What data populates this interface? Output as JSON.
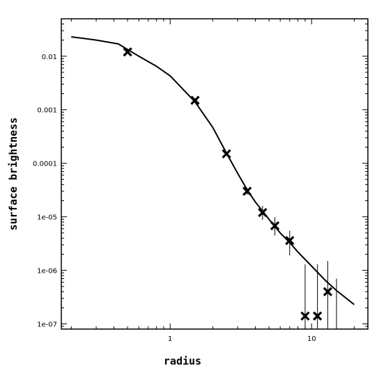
{
  "chart_data": {
    "type": "scatter",
    "xlabel": "radius",
    "ylabel": "surface brightness",
    "xscale": "log",
    "yscale": "log",
    "xlim": [
      0.17,
      25
    ],
    "ylim": [
      8e-08,
      0.05
    ],
    "grid": false,
    "x_ticks": [
      {
        "value": 1,
        "label": "1"
      },
      {
        "value": 10,
        "label": "10"
      }
    ],
    "y_ticks": [
      {
        "value": 0.01,
        "label": "0.01"
      },
      {
        "value": 0.001,
        "label": "0.001"
      },
      {
        "value": 0.0001,
        "label": "0.0001"
      },
      {
        "value": 1e-05,
        "label": "1e-05"
      },
      {
        "value": 1e-06,
        "label": "1e-06"
      },
      {
        "value": 1e-07,
        "label": "1e-07"
      }
    ],
    "series": [
      {
        "kind": "line",
        "x": [
          0.2,
          0.3,
          0.43,
          0.6,
          0.8,
          1.0,
          1.5,
          2.0,
          2.5,
          3.0,
          3.5,
          4.0,
          5.0,
          6.0,
          7.0,
          8.0,
          10.0,
          12.5,
          15.0,
          20.0
        ],
        "y": [
          0.023,
          0.02,
          0.017,
          0.01,
          0.0065,
          0.0043,
          0.0014,
          0.00047,
          0.000155,
          6.5e-05,
          3.2e-05,
          1.9e-05,
          9e-06,
          5e-06,
          3.3e-06,
          2.2e-06,
          1.2e-06,
          6.5e-07,
          4.2e-07,
          2.3e-07
        ]
      },
      {
        "kind": "points",
        "marker": "x",
        "x": [
          0.5,
          1.5,
          2.5,
          3.5,
          4.5,
          5.5,
          7.0,
          9.0,
          11.0,
          13.0
        ],
        "y": [
          0.012,
          0.0015,
          0.00015,
          3e-05,
          1.2e-05,
          6.8e-06,
          3.6e-06,
          1.4e-07,
          1.4e-07,
          4e-07
        ],
        "err_low": [
          0.0114,
          0.00144,
          0.000145,
          2.6e-05,
          8.8e-06,
          4.5e-06,
          1.9e-06,
          8e-08,
          8e-08,
          8e-08
        ],
        "err_high": [
          0.0126,
          0.00156,
          0.000155,
          3.5e-05,
          1.6e-05,
          9.8e-06,
          5.5e-06,
          1.3e-06,
          1.3e-06,
          1.5e-06
        ]
      },
      {
        "kind": "error_only",
        "x": [
          15.0
        ],
        "err_low": [
          8e-08
        ],
        "err_high": [
          7e-07
        ]
      }
    ]
  }
}
